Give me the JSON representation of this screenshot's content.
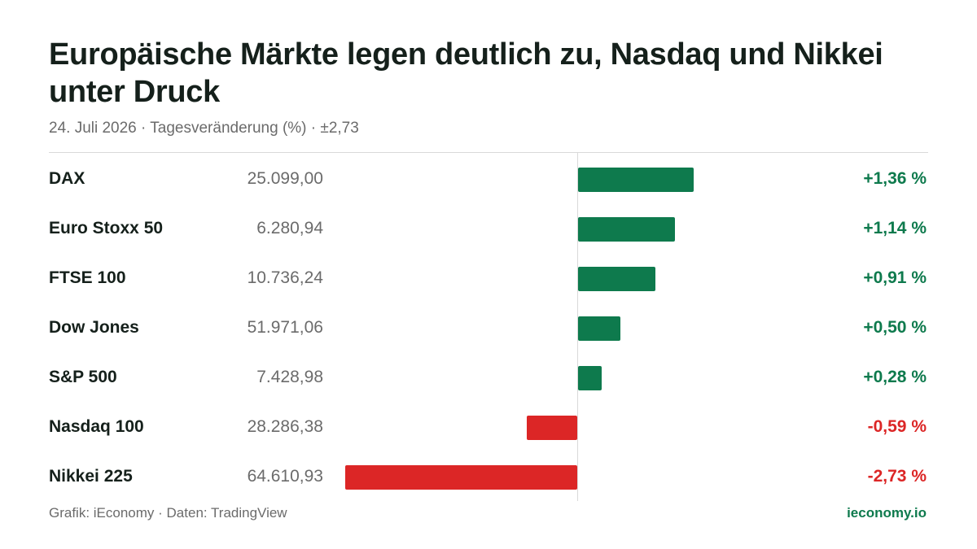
{
  "header": {
    "title": "Europäische Märkte legen deutlich zu, Nasdaq und Nikkei unter Druck",
    "subtitle": "24. Juli 2026 · Tagesveränderung (%) · ±2,73"
  },
  "footer": {
    "source": "Grafik: iEconomy · Daten: TradingView",
    "brand": "ieconomy.io"
  },
  "colors": {
    "positive": "#0e7a4d",
    "negative": "#dc2626"
  },
  "chart_data": {
    "type": "bar",
    "orientation": "horizontal",
    "title": "Europäische Märkte legen deutlich zu, Nasdaq und Nikkei unter Druck",
    "subtitle": "24. Juli 2026 · Tagesveränderung (%) · ±2,73",
    "xlim": [
      -2.73,
      2.73
    ],
    "grid": false,
    "legend": "none",
    "categories": [
      "DAX",
      "Euro Stoxx 50",
      "FTSE 100",
      "Dow Jones",
      "S&P 500",
      "Nasdaq 100",
      "Nikkei 225"
    ],
    "index_levels": [
      "25.099,00",
      "6.280,94",
      "10.736,24",
      "51.971,06",
      "7.428,98",
      "28.286,38",
      "64.610,93"
    ],
    "values": [
      1.36,
      1.14,
      0.91,
      0.5,
      0.28,
      -0.59,
      -2.73
    ],
    "value_labels": [
      "+1,36 %",
      "+1,14 %",
      "+0,91 %",
      "+0,50 %",
      "+0,28 %",
      "-0,59 %",
      "-2,73 %"
    ]
  }
}
